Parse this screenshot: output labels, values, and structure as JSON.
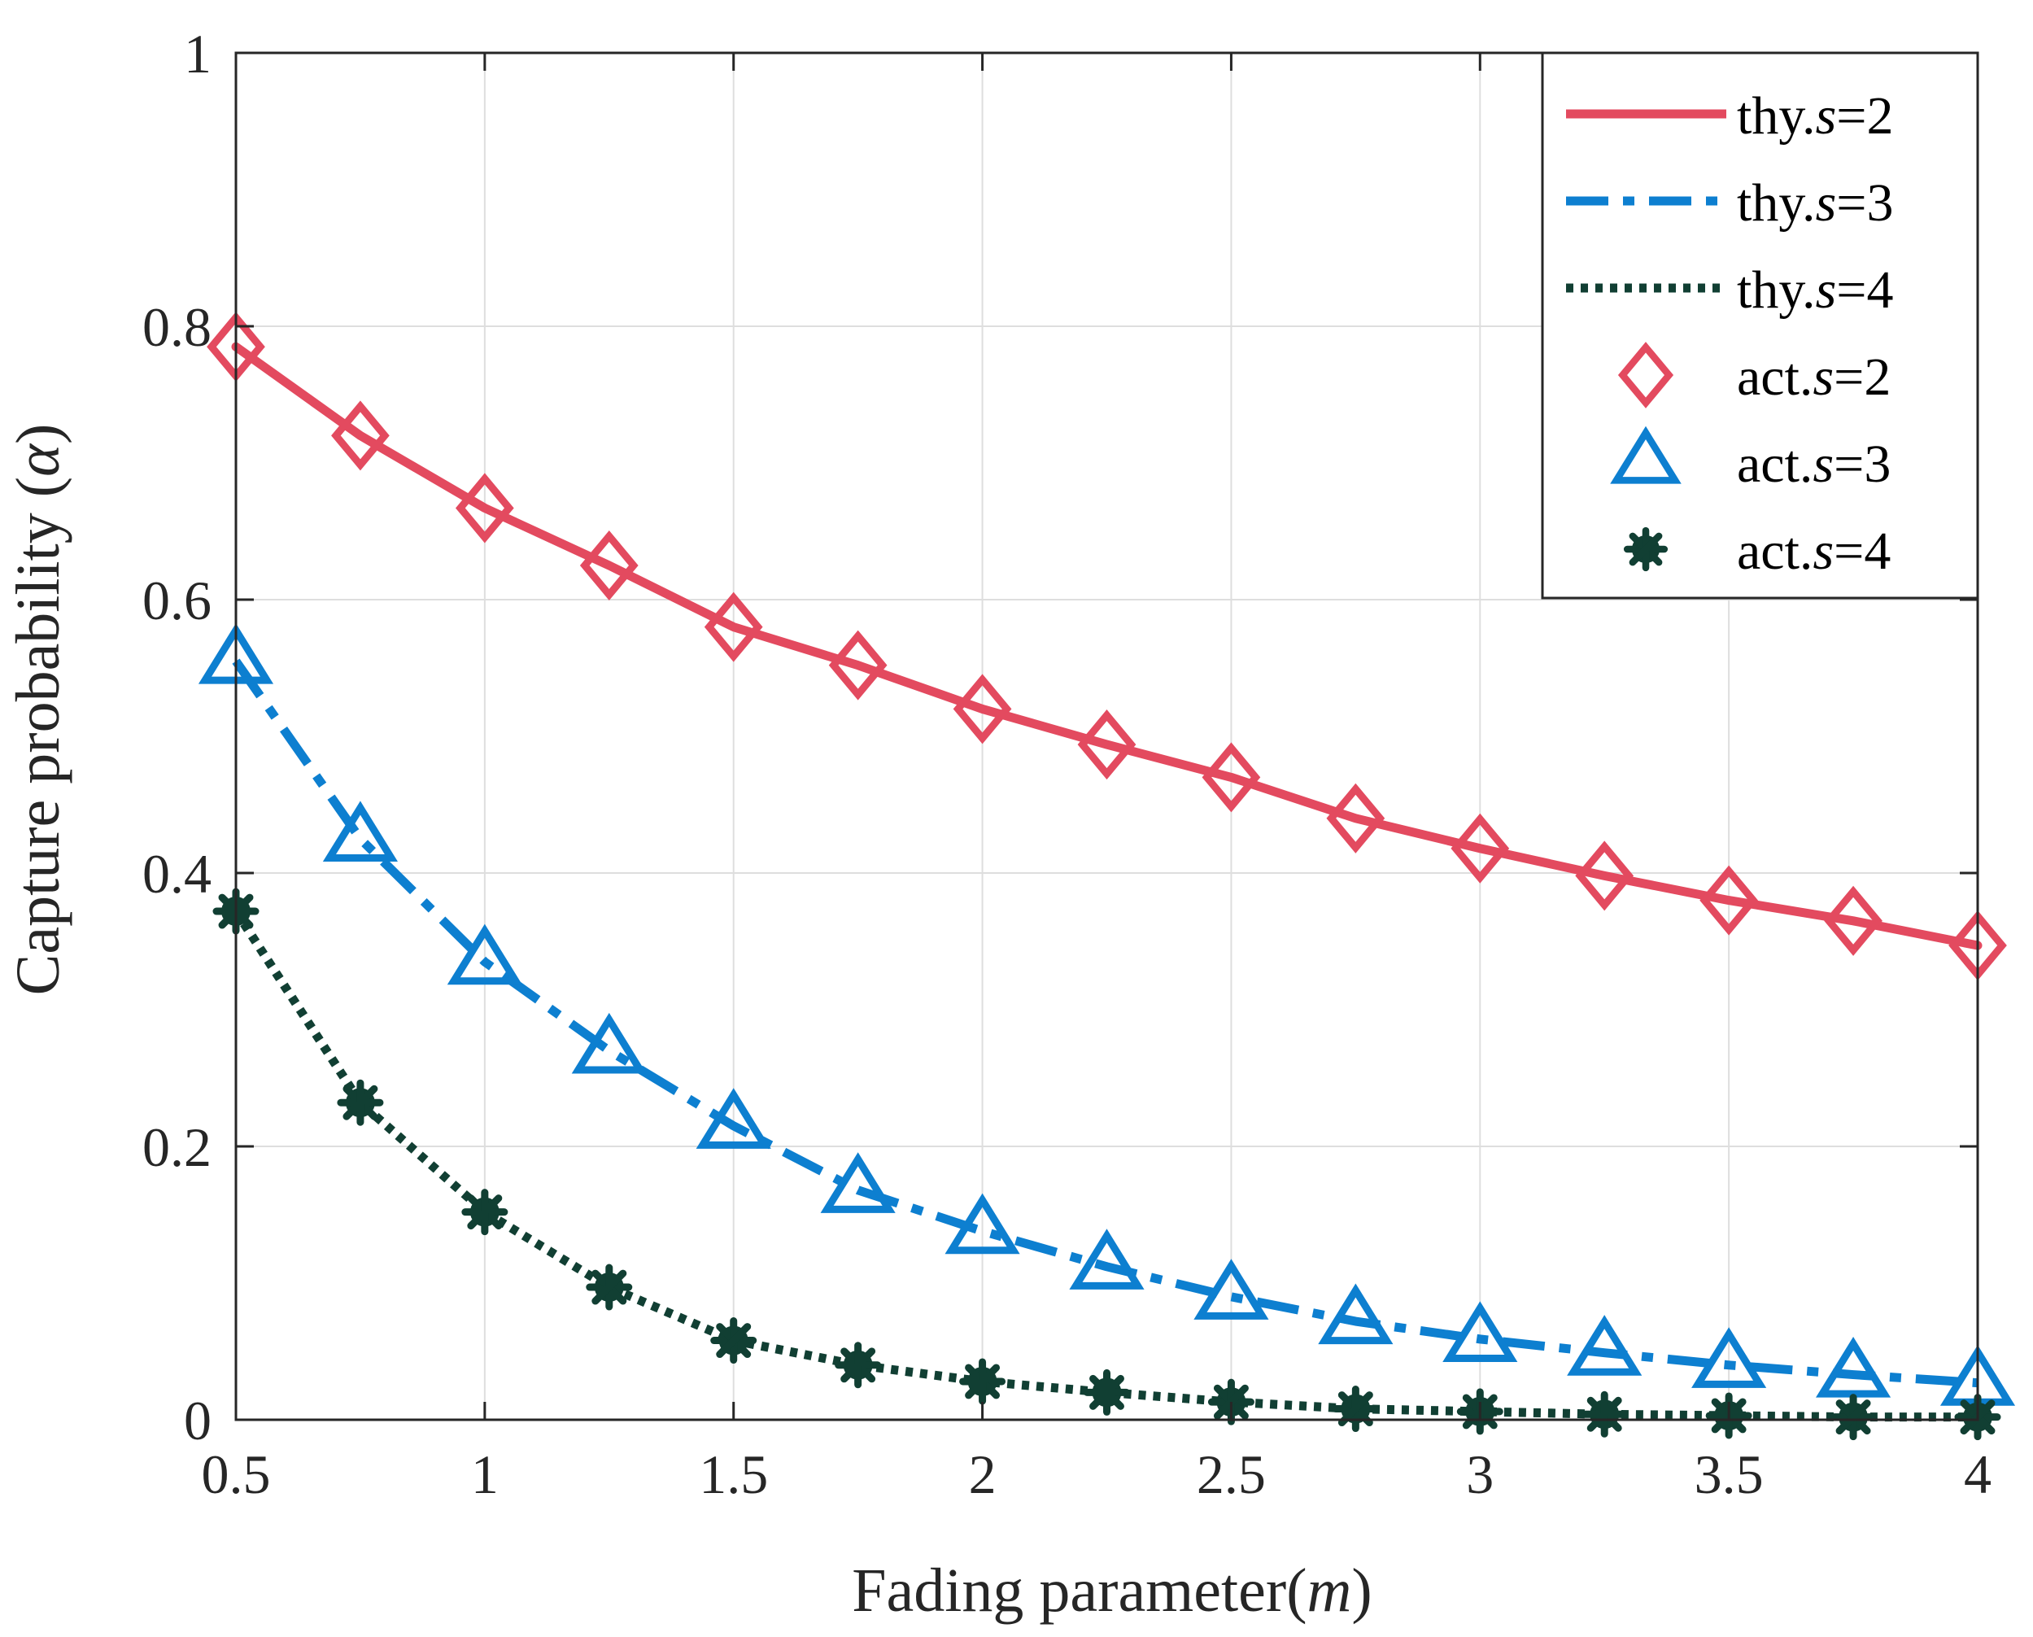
{
  "chart_data": {
    "type": "line",
    "xlabel": "Fading parameter",
    "xlabel_var": "m",
    "ylabel": "Capture probability",
    "ylabel_var": "α",
    "xlim": [
      0.5,
      4
    ],
    "ylim": [
      0,
      1
    ],
    "grid": true,
    "legend_position": "top-right",
    "x_ticks": [
      "0.5",
      "1",
      "1.5",
      "2",
      "2.5",
      "3",
      "3.5",
      "4"
    ],
    "y_ticks": [
      "0",
      "0.2",
      "0.4",
      "0.6",
      "0.8",
      "1"
    ],
    "x": [
      0.5,
      0.75,
      1.0,
      1.25,
      1.5,
      1.75,
      2.0,
      2.25,
      2.5,
      2.75,
      3.0,
      3.25,
      3.5,
      3.75,
      4.0
    ],
    "series": [
      {
        "name": "thy.s=2",
        "prefix": "thy.",
        "var": "s",
        "suffix": "=2",
        "kind": "line",
        "dash": "solid",
        "color": "#e34a5f",
        "values": [
          0.785,
          0.72,
          0.667,
          0.625,
          0.58,
          0.552,
          0.52,
          0.494,
          0.47,
          0.44,
          0.418,
          0.398,
          0.38,
          0.365,
          0.347
        ]
      },
      {
        "name": "thy.s=3",
        "prefix": "thy.",
        "var": "s",
        "suffix": "=3",
        "kind": "line",
        "dash": "dashdot",
        "color": "#0d7fd0",
        "values": [
          0.555,
          0.425,
          0.335,
          0.27,
          0.215,
          0.168,
          0.138,
          0.112,
          0.09,
          0.072,
          0.059,
          0.049,
          0.04,
          0.033,
          0.027
        ]
      },
      {
        "name": "thy.s=4",
        "prefix": "thy.",
        "var": "s",
        "suffix": "=4",
        "kind": "line",
        "dash": "dotted",
        "color": "#113f33",
        "values": [
          0.372,
          0.232,
          0.152,
          0.097,
          0.058,
          0.04,
          0.028,
          0.02,
          0.013,
          0.008,
          0.006,
          0.004,
          0.003,
          0.002,
          0.002
        ]
      },
      {
        "name": "act.s=2",
        "prefix": "act.",
        "var": "s",
        "suffix": "=2",
        "kind": "marker",
        "marker": "diamond",
        "color": "#e34a5f",
        "values": [
          0.785,
          0.72,
          0.667,
          0.625,
          0.58,
          0.552,
          0.52,
          0.494,
          0.47,
          0.44,
          0.418,
          0.398,
          0.38,
          0.365,
          0.347
        ]
      },
      {
        "name": "act.s=3",
        "prefix": "act.",
        "var": "s",
        "suffix": "=3",
        "kind": "marker",
        "marker": "triangle",
        "color": "#0d7fd0",
        "values": [
          0.555,
          0.425,
          0.335,
          0.27,
          0.215,
          0.168,
          0.138,
          0.112,
          0.09,
          0.072,
          0.059,
          0.049,
          0.04,
          0.033,
          0.027
        ]
      },
      {
        "name": "act.s=4",
        "prefix": "act.",
        "var": "s",
        "suffix": "=4",
        "kind": "marker",
        "marker": "asterisk",
        "color": "#113f33",
        "values": [
          0.372,
          0.232,
          0.152,
          0.097,
          0.058,
          0.04,
          0.028,
          0.02,
          0.013,
          0.008,
          0.006,
          0.004,
          0.003,
          0.002,
          0.002
        ]
      }
    ]
  }
}
